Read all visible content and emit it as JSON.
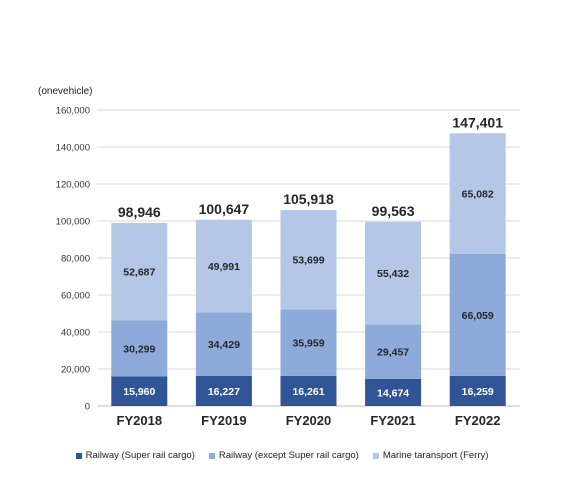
{
  "chart_data": {
    "type": "bar",
    "stacked": true,
    "unit_label": "(onevehicle)",
    "categories": [
      "FY2018",
      "FY2019",
      "FY2020",
      "FY2021",
      "FY2022"
    ],
    "series": [
      {
        "name": "Railway (Super rail cargo)",
        "color": "#2f5597",
        "values": [
          15960,
          16227,
          16261,
          14674,
          16259
        ]
      },
      {
        "name": "Railway (except Super rail cargo)",
        "color": "#8eaadb",
        "values": [
          30299,
          34429,
          35959,
          29457,
          66059
        ]
      },
      {
        "name": "Marine taransport (Ferry)",
        "color": "#b4c7e7",
        "values": [
          52687,
          49991,
          53699,
          55432,
          65082
        ]
      }
    ],
    "totals": [
      98946,
      100647,
      105918,
      99563,
      147401
    ],
    "y_ticks": [
      0,
      20000,
      40000,
      60000,
      80000,
      100000,
      120000,
      140000,
      160000
    ],
    "ylim": [
      0,
      160000
    ],
    "grid": true,
    "legend_position": "bottom"
  }
}
